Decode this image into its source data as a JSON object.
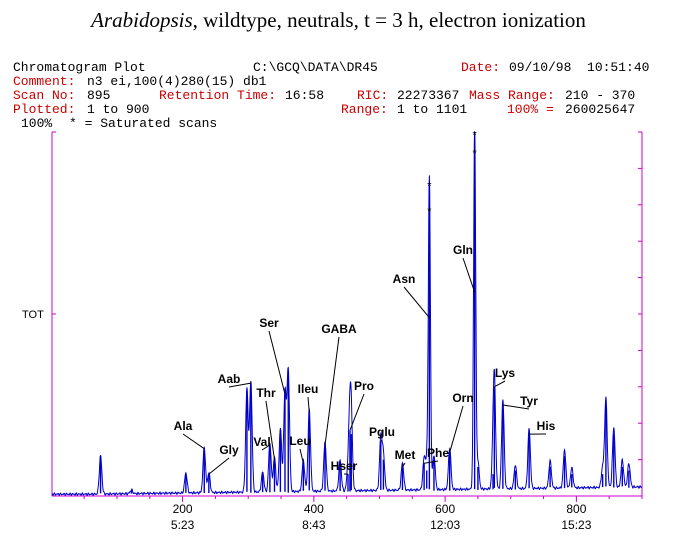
{
  "title": {
    "species": "Arabidopsis",
    "rest": ", wildtype, neutrals, t = 3 h, electron ionization"
  },
  "header": {
    "plot_name": "Chromatogram Plot",
    "path": "C:\\GCQ\\DATA\\DR45",
    "date_label": "Date:",
    "date_value": "09/10/98  10:51:40",
    "comment_label": "Comment:",
    "comment_value": "n3 ei,100(4)280(15) db1",
    "scan_label": "Scan No:",
    "scan_value": "895",
    "rt_label": "Retention Time:",
    "rt_value": "16:58",
    "ric_label": "RIC:",
    "ric_value": "22273367",
    "mass_range_label": "Mass Range:",
    "mass_range_value": "210 - 370",
    "plotted_label": "Plotted:",
    "plotted_value": "1 to 900",
    "range_label": "Range:",
    "range_value": "1 to 1101",
    "pct_label": "100% =",
    "pct_value": "260025647",
    "hundred_pct": "100%",
    "saturated_note": "* = Saturated scans"
  },
  "colors": {
    "trace": "#0000cc",
    "axis": "#cc00cc",
    "header_labels": "#cc0000",
    "text": "#000000"
  },
  "chart_data": {
    "type": "line",
    "ylabel": "TOT",
    "x_ticks": [
      200,
      400,
      600,
      800
    ],
    "x_time_labels": [
      "5:23",
      "8:43",
      "12:03",
      "15:23"
    ],
    "xlim": [
      1,
      900
    ],
    "ylim": [
      0,
      100
    ],
    "peaks": [
      {
        "x": 75,
        "y": 11
      },
      {
        "x": 122,
        "y": 1.5
      },
      {
        "x": 205,
        "y": 6
      },
      {
        "x": 233,
        "y": 13
      },
      {
        "x": 240,
        "y": 6
      },
      {
        "x": 298,
        "y": 29
      },
      {
        "x": 304,
        "y": 31
      },
      {
        "x": 322,
        "y": 6
      },
      {
        "x": 333,
        "y": 14
      },
      {
        "x": 340,
        "y": 10
      },
      {
        "x": 349,
        "y": 18
      },
      {
        "x": 356,
        "y": 28
      },
      {
        "x": 361,
        "y": 34
      },
      {
        "x": 384,
        "y": 9
      },
      {
        "x": 393,
        "y": 23
      },
      {
        "x": 417,
        "y": 14
      },
      {
        "x": 440,
        "y": 9
      },
      {
        "x": 452,
        "y": 6
      },
      {
        "x": 455,
        "y": 18
      },
      {
        "x": 457,
        "y": 17
      },
      {
        "x": 502,
        "y": 15
      },
      {
        "x": 506,
        "y": 10
      },
      {
        "x": 535,
        "y": 8
      },
      {
        "x": 568,
        "y": 9
      },
      {
        "x": 572,
        "y": 7
      },
      {
        "x": 576,
        "y": 86
      },
      {
        "x": 583,
        "y": 10
      },
      {
        "x": 607,
        "y": 12
      },
      {
        "x": 645,
        "y": 100
      },
      {
        "x": 650,
        "y": 8
      },
      {
        "x": 673,
        "y": 6
      },
      {
        "x": 675,
        "y": 30
      },
      {
        "x": 688,
        "y": 25
      },
      {
        "x": 707,
        "y": 7
      },
      {
        "x": 728,
        "y": 17
      },
      {
        "x": 760,
        "y": 8
      },
      {
        "x": 782,
        "y": 11
      },
      {
        "x": 793,
        "y": 6
      },
      {
        "x": 840,
        "y": 6
      },
      {
        "x": 845,
        "y": 25
      },
      {
        "x": 857,
        "y": 17
      },
      {
        "x": 870,
        "y": 8
      },
      {
        "x": 880,
        "y": 7
      }
    ],
    "saturated_markers": [
      {
        "x": 576,
        "y": 85
      },
      {
        "x": 576,
        "y": 78
      },
      {
        "x": 645,
        "y": 99
      },
      {
        "x": 645,
        "y": 94
      }
    ],
    "annotations": [
      {
        "text": "Ala",
        "peak_x": 233,
        "peak_y": 13
      },
      {
        "text": "Gly",
        "peak_x": 240,
        "peak_y": 6
      },
      {
        "text": "Aab",
        "peak_x": 304,
        "peak_y": 31
      },
      {
        "text": "Thr",
        "peak_x": 340,
        "peak_y": 10
      },
      {
        "text": "Val",
        "peak_x": 333,
        "peak_y": 14
      },
      {
        "text": "Ser",
        "peak_x": 356,
        "peak_y": 28
      },
      {
        "text": "Ileu",
        "peak_x": 393,
        "peak_y": 23
      },
      {
        "text": "Leu",
        "peak_x": 384,
        "peak_y": 9
      },
      {
        "text": "GABA",
        "peak_x": 417,
        "peak_y": 14
      },
      {
        "text": "Hser",
        "peak_x": 452,
        "peak_y": 6
      },
      {
        "text": "Pro",
        "peak_x": 455,
        "peak_y": 18
      },
      {
        "text": "Pglu",
        "peak_x": 502,
        "peak_y": 15
      },
      {
        "text": "Met",
        "peak_x": 535,
        "peak_y": 8
      },
      {
        "text": "Phe",
        "peak_x": 568,
        "peak_y": 9
      },
      {
        "text": "Asn",
        "peak_x": 576,
        "peak_y": 49
      },
      {
        "text": "Orn",
        "peak_x": 607,
        "peak_y": 12
      },
      {
        "text": "Gln",
        "peak_x": 645,
        "peak_y": 56
      },
      {
        "text": "Lys",
        "peak_x": 675,
        "peak_y": 30
      },
      {
        "text": "Tyr",
        "peak_x": 688,
        "peak_y": 25
      },
      {
        "text": "His",
        "peak_x": 728,
        "peak_y": 17
      }
    ]
  }
}
